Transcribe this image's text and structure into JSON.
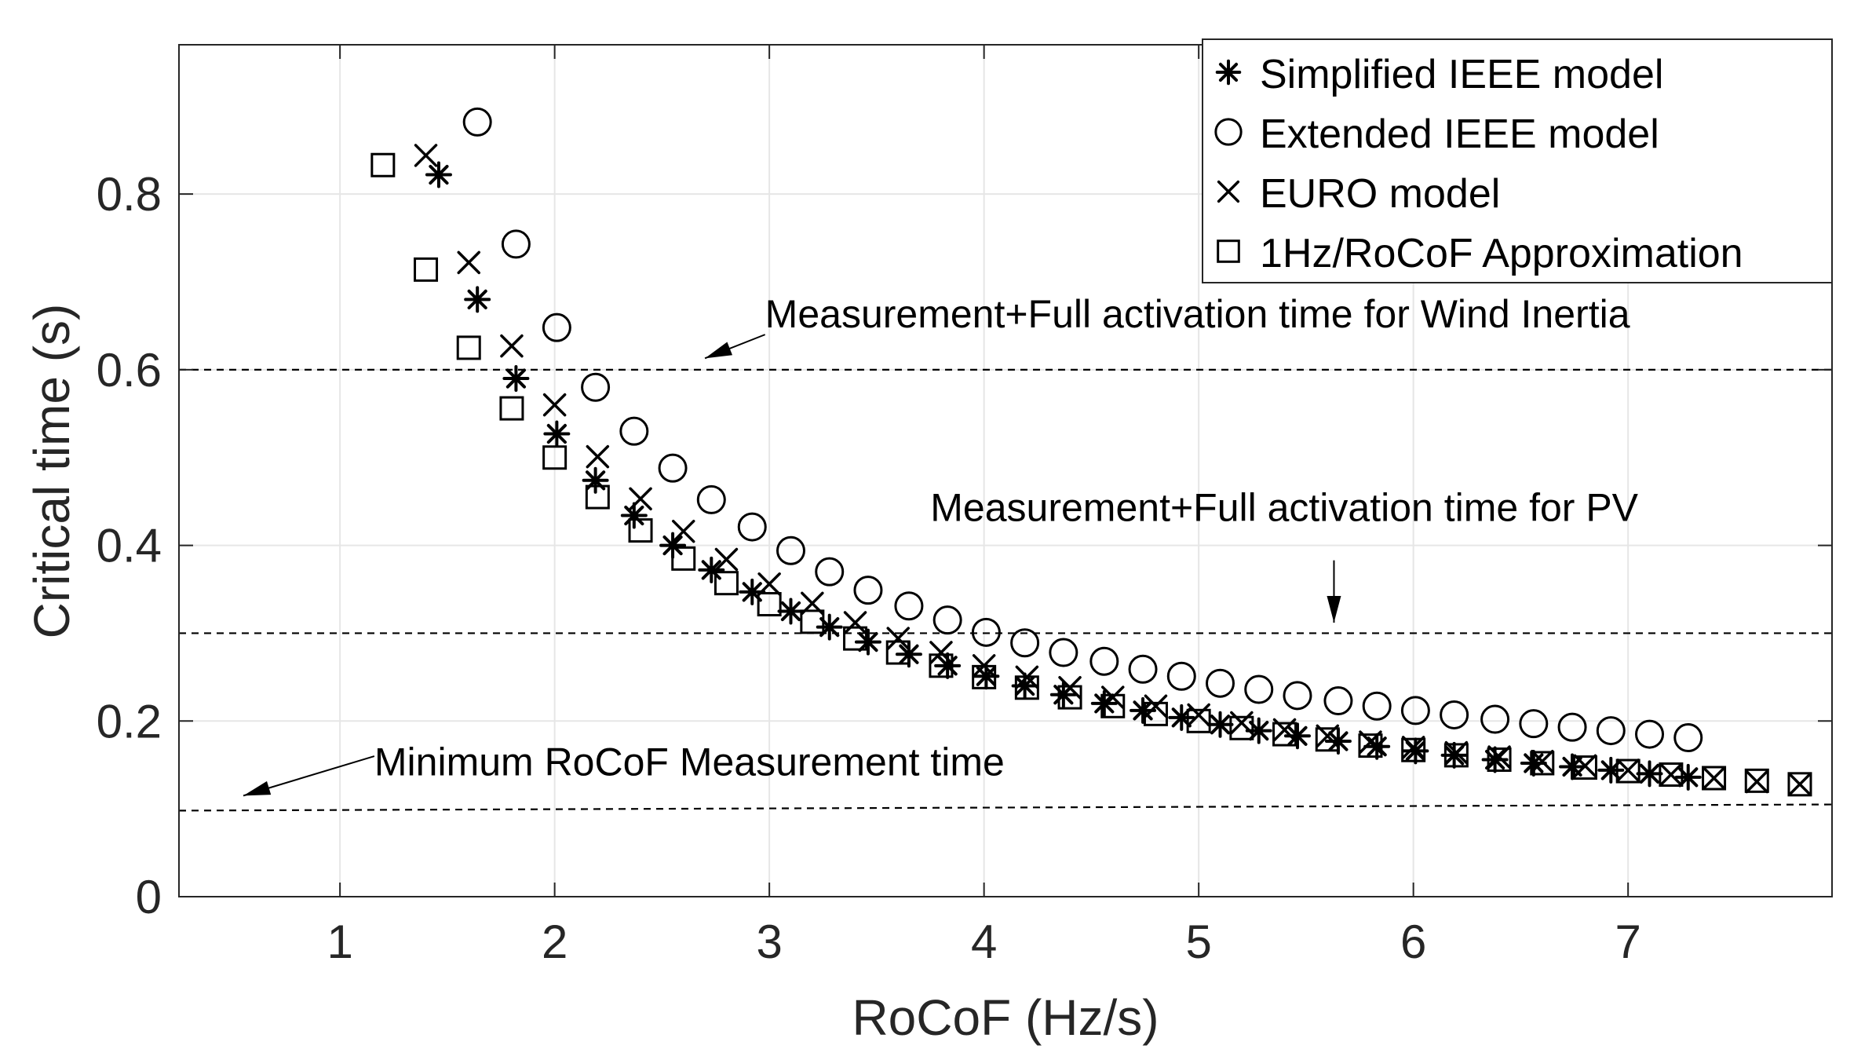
{
  "chart_data": {
    "type": "scatter",
    "title": "",
    "xlabel": "RoCoF (Hz/s)",
    "ylabel": "Critical time (s)",
    "xlim": [
      0.25,
      7.95
    ],
    "ylim": [
      0,
      0.97
    ],
    "xticks": [
      1,
      2,
      3,
      4,
      5,
      6,
      7
    ],
    "yticks": [
      0,
      0.2,
      0.4,
      0.6,
      0.8
    ],
    "xtick_labels": [
      "1",
      "2",
      "3",
      "4",
      "5",
      "6",
      "7"
    ],
    "ytick_labels": [
      "0",
      "0.2",
      "0.4",
      "0.6",
      "0.8"
    ],
    "grid": true,
    "legend_position": "top-right",
    "colors": {
      "marker": "#000000",
      "grid": "#e6e6e6",
      "axis": "#262626"
    },
    "series": [
      {
        "name": "Simplified IEEE model",
        "marker": "asterisk",
        "x": [
          1.46,
          1.64,
          1.82,
          2.01,
          2.19,
          2.37,
          2.55,
          2.73,
          2.92,
          3.1,
          3.28,
          3.46,
          3.65,
          3.83,
          4.01,
          4.19,
          4.37,
          4.56,
          4.74,
          4.92,
          5.1,
          5.28,
          5.46,
          5.65,
          5.83,
          6.01,
          6.19,
          6.38,
          6.56,
          6.74,
          6.92,
          7.1,
          7.28
        ],
        "y": [
          0.822,
          0.68,
          0.59,
          0.527,
          0.474,
          0.434,
          0.4,
          0.372,
          0.347,
          0.325,
          0.307,
          0.29,
          0.276,
          0.263,
          0.251,
          0.24,
          0.23,
          0.22,
          0.212,
          0.204,
          0.196,
          0.189,
          0.183,
          0.177,
          0.171,
          0.166,
          0.161,
          0.156,
          0.152,
          0.148,
          0.144,
          0.14,
          0.136
        ]
      },
      {
        "name": "Extended IEEE model",
        "marker": "circle",
        "x": [
          1.64,
          1.82,
          2.01,
          2.19,
          2.37,
          2.55,
          2.73,
          2.92,
          3.1,
          3.28,
          3.46,
          3.65,
          3.83,
          4.01,
          4.19,
          4.37,
          4.56,
          4.74,
          4.92,
          5.1,
          5.28,
          5.46,
          5.65,
          5.83,
          6.01,
          6.19,
          6.38,
          6.56,
          6.74,
          6.92,
          7.1,
          7.28
        ],
        "y": [
          0.882,
          0.743,
          0.648,
          0.58,
          0.53,
          0.488,
          0.452,
          0.421,
          0.394,
          0.37,
          0.349,
          0.331,
          0.315,
          0.301,
          0.289,
          0.278,
          0.268,
          0.259,
          0.251,
          0.243,
          0.236,
          0.229,
          0.223,
          0.217,
          0.212,
          0.207,
          0.202,
          0.197,
          0.193,
          0.189,
          0.185,
          0.181
        ]
      },
      {
        "name": "EURO model",
        "marker": "cross",
        "x": [
          1.4,
          1.6,
          1.8,
          2.0,
          2.2,
          2.4,
          2.6,
          2.8,
          3.0,
          3.2,
          3.4,
          3.6,
          3.8,
          4.0,
          4.2,
          4.4,
          4.6,
          4.8,
          5.0,
          5.2,
          5.4,
          5.6,
          5.8,
          6.0,
          6.2,
          6.4,
          6.6,
          6.8,
          7.0,
          7.2,
          7.4,
          7.6,
          7.8
        ],
        "y": [
          0.844,
          0.722,
          0.627,
          0.56,
          0.501,
          0.453,
          0.416,
          0.384,
          0.356,
          0.334,
          0.312,
          0.294,
          0.278,
          0.263,
          0.25,
          0.238,
          0.227,
          0.217,
          0.207,
          0.198,
          0.19,
          0.183,
          0.176,
          0.17,
          0.164,
          0.159,
          0.154,
          0.149,
          0.144,
          0.139,
          0.135,
          0.131,
          0.128
        ]
      },
      {
        "name": "1Hz/RoCoF Approximation",
        "marker": "square",
        "x": [
          1.2,
          1.4,
          1.6,
          1.8,
          2.0,
          2.2,
          2.4,
          2.6,
          2.8,
          3.0,
          3.2,
          3.4,
          3.6,
          3.8,
          4.0,
          4.2,
          4.4,
          4.6,
          4.8,
          5.0,
          5.2,
          5.4,
          5.6,
          5.8,
          6.0,
          6.2,
          6.4,
          6.6,
          6.8,
          7.0,
          7.2,
          7.4,
          7.6,
          7.8
        ],
        "y": [
          0.833,
          0.714,
          0.625,
          0.556,
          0.5,
          0.455,
          0.417,
          0.385,
          0.357,
          0.333,
          0.313,
          0.294,
          0.278,
          0.263,
          0.25,
          0.238,
          0.227,
          0.217,
          0.208,
          0.2,
          0.192,
          0.185,
          0.179,
          0.172,
          0.167,
          0.161,
          0.156,
          0.152,
          0.147,
          0.143,
          0.139,
          0.135,
          0.132,
          0.128
        ]
      }
    ],
    "reference_lines": [
      {
        "name": "wind",
        "y_start": 0.6,
        "y_end": 0.6,
        "label": "Measurement+Full activation time for Wind Inertia"
      },
      {
        "name": "pv",
        "y_start": 0.3,
        "y_end": 0.3,
        "label": "Measurement+Full activation time for PV"
      },
      {
        "name": "min",
        "y_start": 0.098,
        "y_end": 0.105,
        "label": "Minimum RoCoF Measurement time"
      }
    ],
    "annotations": [
      {
        "name": "wind",
        "text": "Measurement+Full activation time for Wind Inertia",
        "text_x": 2.98,
        "text_y": 0.648,
        "arrow_from": [
          2.98,
          0.64
        ],
        "arrow_to": [
          2.7,
          0.613
        ]
      },
      {
        "name": "pv",
        "text": "Measurement+Full activation time for PV",
        "text_x": 3.75,
        "text_y": 0.428,
        "arrow_from": [
          5.63,
          0.383
        ],
        "arrow_to": [
          5.63,
          0.312
        ]
      },
      {
        "name": "min",
        "text": "Minimum RoCoF Measurement time",
        "text_x": 1.16,
        "text_y": 0.138,
        "arrow_from": [
          1.16,
          0.16
        ],
        "arrow_to": [
          0.55,
          0.115
        ]
      }
    ]
  }
}
